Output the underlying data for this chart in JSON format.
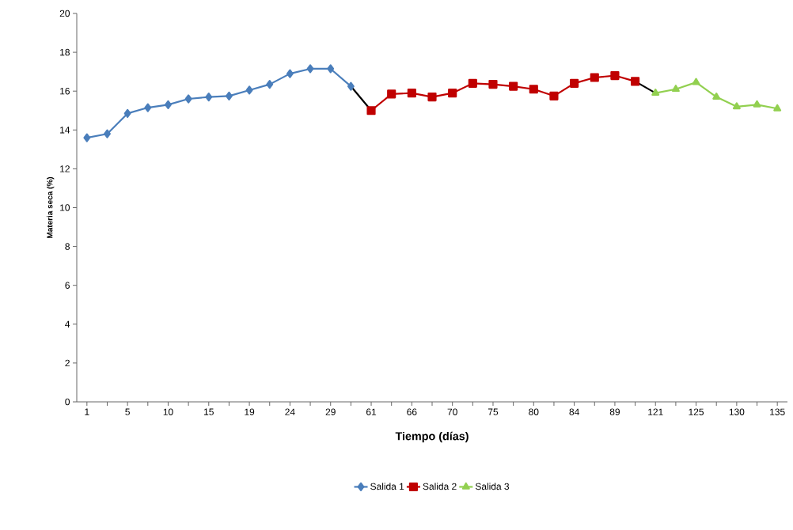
{
  "chart_data": {
    "type": "line",
    "xlabel": "Tiempo (días)",
    "ylabel": "Materia seca (%)",
    "categories": [
      "1",
      null,
      "5",
      null,
      "10",
      null,
      "15",
      null,
      "19",
      null,
      "24",
      null,
      "29",
      null,
      "61",
      null,
      "66",
      null,
      "70",
      null,
      "75",
      null,
      "80",
      null,
      "84",
      null,
      "89",
      null,
      "121",
      null,
      "125",
      null,
      "130",
      null,
      "135"
    ],
    "ylim": [
      0,
      20
    ],
    "yticks": [
      0,
      2,
      4,
      6,
      8,
      10,
      12,
      14,
      16,
      18,
      20
    ],
    "grid": false,
    "legend": "bottom",
    "series": [
      {
        "color": "#000000",
        "marker": "none",
        "values": [
          null,
          null,
          null,
          null,
          null,
          null,
          null,
          null,
          null,
          null,
          null,
          null,
          null,
          16.25,
          15.0,
          null,
          null,
          null,
          null,
          null,
          null,
          null,
          null,
          null,
          null,
          null,
          null,
          16.5,
          15.9,
          null,
          null,
          null,
          null,
          null,
          null
        ]
      },
      {
        "name": "Salida 1",
        "color": "#4a7ebb",
        "marker": "diamond",
        "values": [
          13.6,
          13.8,
          14.85,
          15.15,
          15.3,
          15.6,
          15.7,
          15.75,
          16.05,
          16.35,
          16.9,
          17.15,
          17.15,
          16.25,
          null,
          null,
          null,
          null,
          null,
          null,
          null,
          null,
          null,
          null,
          null,
          null,
          null,
          null,
          null,
          null,
          null,
          null,
          null,
          null,
          null
        ]
      },
      {
        "name": "Salida 2",
        "color": "#c00000",
        "marker": "square",
        "values": [
          null,
          null,
          null,
          null,
          null,
          null,
          null,
          null,
          null,
          null,
          null,
          null,
          null,
          null,
          15.0,
          15.85,
          15.9,
          15.7,
          15.9,
          16.4,
          16.35,
          16.25,
          16.1,
          15.75,
          16.4,
          16.7,
          16.8,
          16.5,
          null,
          null,
          null,
          null,
          null,
          null,
          null
        ]
      },
      {
        "name": "Salida 3",
        "color": "#92d050",
        "marker": "triangle",
        "values": [
          null,
          null,
          null,
          null,
          null,
          null,
          null,
          null,
          null,
          null,
          null,
          null,
          null,
          null,
          null,
          null,
          null,
          null,
          null,
          null,
          null,
          null,
          null,
          null,
          null,
          null,
          null,
          null,
          15.9,
          16.1,
          16.45,
          15.7,
          15.2,
          15.3,
          15.1
        ]
      }
    ]
  }
}
